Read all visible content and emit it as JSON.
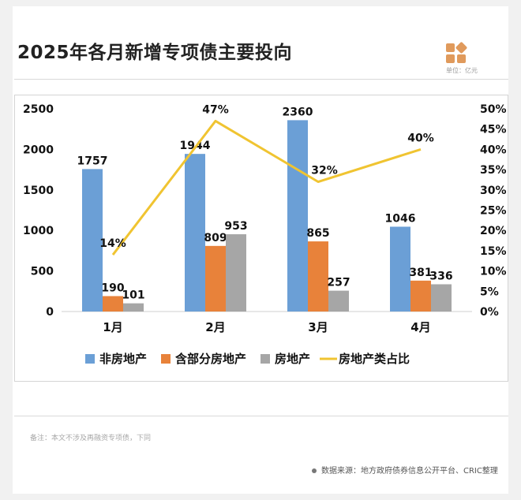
{
  "header": {
    "title": "2025年各月新增专项债主要投向",
    "unit_label": "单位：亿元"
  },
  "footer": {
    "note": "备注：本文不涉及再融资专项债，下同",
    "source": "数据来源：地方政府债券信息公开平台、CRIC整理"
  },
  "colors": {
    "non_real_estate": "#6b9fd6",
    "incl_real_estate": "#e8823a",
    "real_estate": "#a6a6a6",
    "share_line": "#f0c431",
    "logo": "#e09a5c"
  },
  "chart_data": {
    "type": "bar",
    "categories": [
      "1月",
      "2月",
      "3月",
      "4月"
    ],
    "series": [
      {
        "name": "非房地产",
        "type": "bar",
        "values": [
          1757,
          1944,
          2360,
          1046
        ]
      },
      {
        "name": "含部分房地产",
        "type": "bar",
        "values": [
          190,
          809,
          865,
          381
        ]
      },
      {
        "name": "房地产",
        "type": "bar",
        "values": [
          101,
          953,
          257,
          336
        ]
      },
      {
        "name": "房地产类占比",
        "type": "line",
        "axis": "right",
        "values": [
          0.14,
          0.47,
          0.32,
          0.4
        ],
        "labels": [
          "14%",
          "47%",
          "32%",
          "40%"
        ]
      }
    ],
    "ylim": [
      0,
      2500
    ],
    "yticks": [
      "0",
      "500",
      "1000",
      "1500",
      "2000",
      "2500"
    ],
    "y2lim": [
      0,
      0.5
    ],
    "y2ticks": [
      "0%",
      "5%",
      "10%",
      "15%",
      "20%",
      "25%",
      "30%",
      "35%",
      "40%",
      "45%",
      "50%"
    ],
    "grid": false,
    "legend_position": "bottom"
  }
}
